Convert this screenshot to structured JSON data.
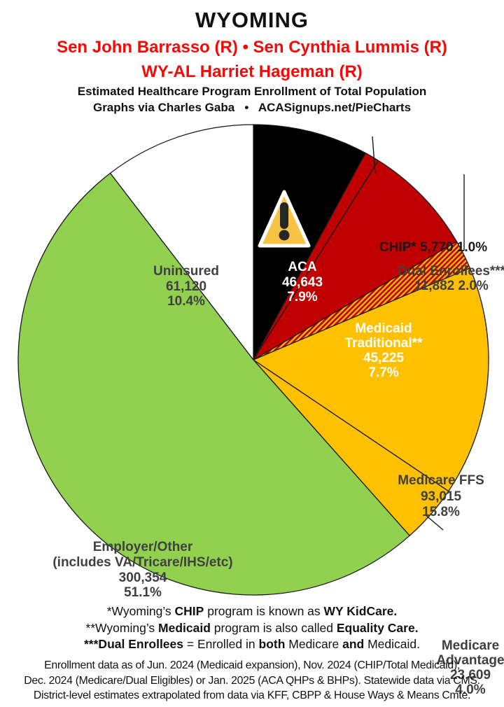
{
  "header": {
    "state": "WYOMING",
    "reps_line1": "Sen John Barrasso (R) • Sen Cynthia Lummis (R)",
    "reps_line2": "WY-AL Harriet Hageman (R)",
    "subtitle1": "Estimated Healthcare Program Enrollment of Total Population",
    "subtitle2": "Graphs via Charles Gaba   •   ACASignups.net/PieCharts"
  },
  "chart_data": {
    "type": "pie",
    "title": "Estimated Healthcare Program Enrollment of Total Population",
    "start_angle_deg": 0,
    "direction": "clockwise",
    "total_label_basis": "Total Population",
    "slices": [
      {
        "label": "ACA",
        "value": "46,643",
        "pct": 7.9,
        "pct_label": "7.9%",
        "color": "#000000",
        "text_color": "#ffffff",
        "note": "warning-triangle shown on slice"
      },
      {
        "label": "CHIP*",
        "value": "5,770",
        "pct": 1.0,
        "pct_label": "1.0%",
        "color": "#C00000"
      },
      {
        "label": "Medicaid Traditional**",
        "value": "45,225",
        "pct": 7.7,
        "pct_label": "7.7%",
        "color": "#C00000",
        "text_color": "#ffffff"
      },
      {
        "label": "Dual Enrollees***",
        "value": "11,882",
        "pct": 2.0,
        "pct_label": "2.0%",
        "pattern": "red-yellow-diagonal-hatch",
        "color": "#C00000"
      },
      {
        "label": "Medicare FFS",
        "value": "93,015",
        "pct": 15.8,
        "pct_label": "15.8%",
        "color": "#FFC000"
      },
      {
        "label": "Medicare Advantage",
        "value": "23,609",
        "pct": 4.0,
        "pct_label": "4.0%",
        "color": "#FFC000"
      },
      {
        "label": "Employer/Other",
        "sublabel": "(includes VA/Tricare/IHS/etc)",
        "value": "300,354",
        "pct": 51.1,
        "pct_label": "51.1%",
        "color": "#92D050"
      },
      {
        "label": "Uninsured",
        "value": "61,120",
        "pct": 10.4,
        "pct_label": "10.4%",
        "color": "#FFFFFF"
      }
    ]
  },
  "footnotes": {
    "chip": [
      "*Wyoming’s ",
      "CHIP",
      " program is known as ",
      "WY KidCare."
    ],
    "medicaid": [
      "**Wyoming’s ",
      "Medicaid",
      " program is also called ",
      "Equality Care."
    ],
    "dual": [
      "***Dual Enrollees",
      " = Enrolled in ",
      "both",
      " Medicare ",
      "and",
      " Medicaid."
    ]
  },
  "source_note": {
    "line1": "Enrollment data as of Jun. 2024 (Medicaid expansion), Nov. 2024 (CHIP/Total Medicaid);",
    "line2": "Dec. 2024 (Medicare/Dual Eligibles) or Jan. 2025 (ACA QHPs & BHPs). Statewide data via CMS.",
    "line3": "District-level estimates extrapolated from data via KFF, CBPP & House Ways & Means Cmte."
  },
  "colors": {
    "header_red": "#F80707",
    "label_dark": "#404040",
    "slice_red": "#C00000",
    "slice_gold": "#FFC000",
    "slice_green": "#92D050",
    "warning_yellow": "#F6C344",
    "outline": "#1a1a1a"
  },
  "icons": {
    "warning": "warning-triangle-icon"
  }
}
